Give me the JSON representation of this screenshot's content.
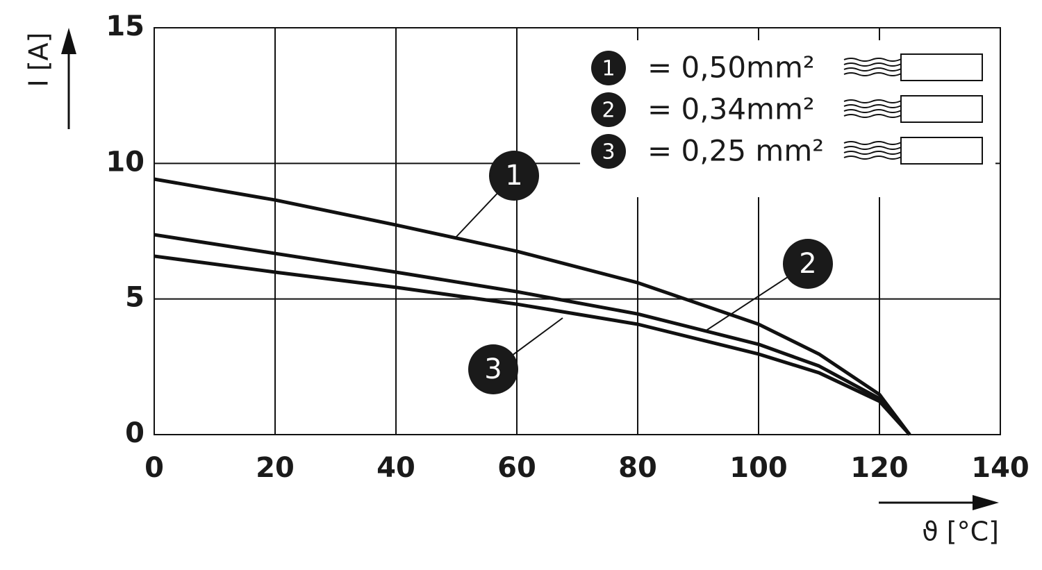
{
  "chart_data": {
    "type": "line",
    "x_label": "ϑ [°C]",
    "y_label": "I [A]",
    "xlim": [
      0,
      140
    ],
    "xticks": [
      0,
      20,
      40,
      60,
      80,
      100,
      120,
      140
    ],
    "ylim": [
      0,
      15
    ],
    "yticks": [
      0,
      5,
      10,
      15
    ],
    "grid": true,
    "x": [
      0,
      20,
      40,
      60,
      80,
      100,
      110,
      120,
      125
    ],
    "series": [
      {
        "name": "1",
        "legend_label": "= 0,50mm²",
        "color": "#111111",
        "values": [
          9.42,
          8.65,
          7.73,
          6.76,
          5.6,
          4.07,
          2.97,
          1.48,
          0
        ]
      },
      {
        "name": "2",
        "legend_label": "= 0,34mm²",
        "color": "#111111",
        "values": [
          7.37,
          6.68,
          5.99,
          5.27,
          4.45,
          3.33,
          2.53,
          1.33,
          0
        ]
      },
      {
        "name": "3",
        "legend_label": "= 0,25  mm²",
        "color": "#111111",
        "values": [
          6.58,
          5.99,
          5.43,
          4.81,
          4.07,
          2.97,
          2.28,
          1.23,
          0
        ]
      }
    ],
    "legend": "top-right"
  }
}
